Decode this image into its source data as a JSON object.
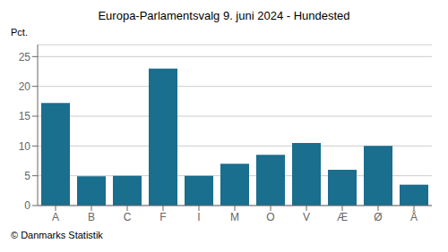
{
  "chart_data": {
    "type": "bar",
    "title": "Europa-Parlamentsvalg 9. juni 2024 - Hundested",
    "categories": [
      "A",
      "B",
      "C",
      "F",
      "I",
      "M",
      "O",
      "V",
      "Æ",
      "Ø",
      "Å"
    ],
    "values": [
      17.2,
      4.9,
      5.0,
      23.0,
      5.0,
      7.0,
      8.5,
      10.5,
      6.0,
      10.0,
      3.5
    ],
    "color": "#1a6e8e",
    "ylabel": "Pct.",
    "footer": "© Danmarks Statistik",
    "ylim": [
      0,
      27
    ],
    "yticks": [
      0,
      5,
      10,
      15,
      20,
      25
    ],
    "grid": true
  }
}
